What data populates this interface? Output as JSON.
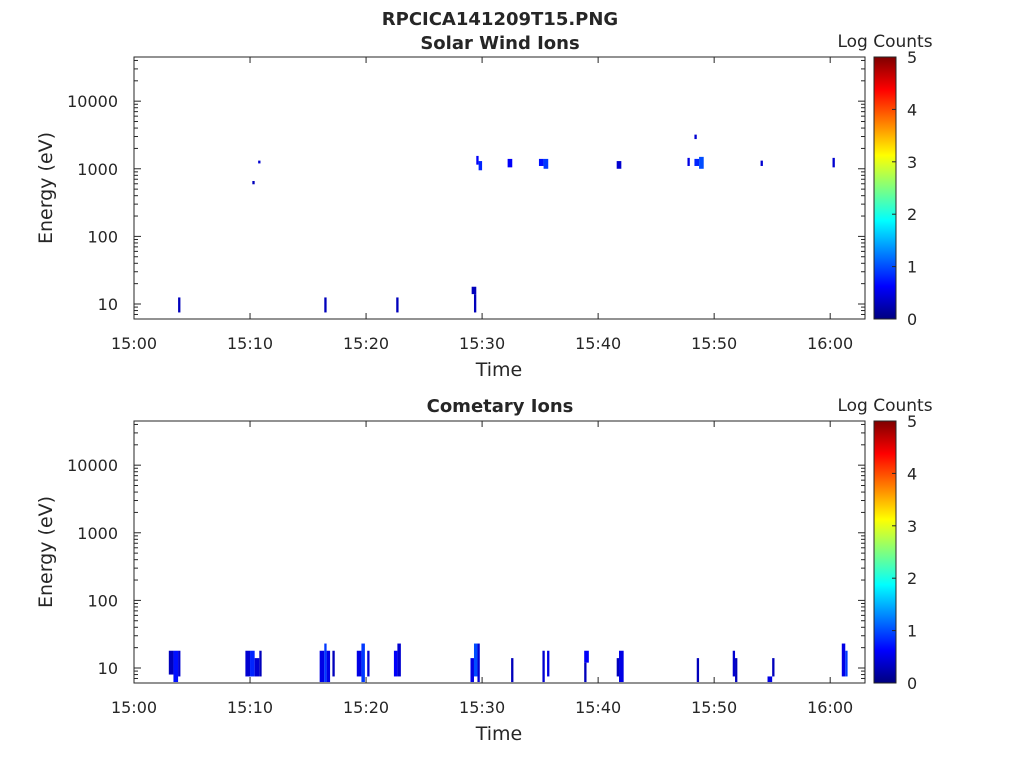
{
  "title": "RPCICA141209T15.PNG",
  "colormap": [
    "#00007f",
    "#0000ff",
    "#007fff",
    "#00ffff",
    "#7fff7f",
    "#ffff00",
    "#ff7f00",
    "#ff0000",
    "#7f0000"
  ],
  "axis_color": "#262626",
  "chart_data": [
    {
      "type": "heatmap",
      "title": "Solar Wind Ions",
      "xlabel": "Time",
      "ylabel": "Energy (eV)",
      "yscale": "log",
      "xlim": [
        "15:00",
        "16:03"
      ],
      "ylim": [
        6,
        45000
      ],
      "x_ticks": [
        "15:00",
        "15:10",
        "15:20",
        "15:30",
        "15:40",
        "15:50",
        "16:00"
      ],
      "y_ticks": [
        "10",
        "100",
        "1000",
        "10000"
      ],
      "colorbar": {
        "label": "Log Counts",
        "range": [
          0,
          5
        ],
        "ticks": [
          "0",
          "1",
          "2",
          "3",
          "4",
          "5"
        ]
      },
      "cells": [
        {
          "t0": "15:03.8",
          "t1": "15:04.0",
          "e_lo": 7.5,
          "e_hi": 12.5,
          "v": 0.3
        },
        {
          "t0": "15:10.2",
          "t1": "15:10.4",
          "e_lo": 590,
          "e_hi": 660,
          "v": 0.3
        },
        {
          "t0": "15:10.7",
          "t1": "15:10.9",
          "e_lo": 1200,
          "e_hi": 1320,
          "v": 0.4
        },
        {
          "t0": "15:16.4",
          "t1": "15:16.6",
          "e_lo": 7.5,
          "e_hi": 12.5,
          "v": 0.3
        },
        {
          "t0": "15:22.6",
          "t1": "15:22.8",
          "e_lo": 7.5,
          "e_hi": 12.5,
          "v": 0.3
        },
        {
          "t0": "15:29.1",
          "t1": "15:29.5",
          "e_lo": 14,
          "e_hi": 18,
          "v": 0.3
        },
        {
          "t0": "15:29.3",
          "t1": "15:29.5",
          "e_lo": 7.5,
          "e_hi": 14,
          "v": 0.3
        },
        {
          "t0": "15:29.5",
          "t1": "15:29.7",
          "e_lo": 1150,
          "e_hi": 1550,
          "v": 0.6
        },
        {
          "t0": "15:29.7",
          "t1": "15:30.0",
          "e_lo": 950,
          "e_hi": 1300,
          "v": 0.8
        },
        {
          "t0": "15:32.2",
          "t1": "15:32.6",
          "e_lo": 1050,
          "e_hi": 1400,
          "v": 0.6
        },
        {
          "t0": "15:34.9",
          "t1": "15:35.3",
          "e_lo": 1100,
          "e_hi": 1400,
          "v": 0.7
        },
        {
          "t0": "15:35.3",
          "t1": "15:35.7",
          "e_lo": 1000,
          "e_hi": 1400,
          "v": 0.9
        },
        {
          "t0": "15:41.6",
          "t1": "15:42.0",
          "e_lo": 1000,
          "e_hi": 1300,
          "v": 0.4
        },
        {
          "t0": "15:47.7",
          "t1": "15:47.9",
          "e_lo": 1100,
          "e_hi": 1450,
          "v": 0.5
        },
        {
          "t0": "15:48.3",
          "t1": "15:48.5",
          "e_lo": 2750,
          "e_hi": 3200,
          "v": 0.4
        },
        {
          "t0": "15:48.3",
          "t1": "15:48.7",
          "e_lo": 1100,
          "e_hi": 1400,
          "v": 0.8
        },
        {
          "t0": "15:48.7",
          "t1": "15:49.1",
          "e_lo": 1000,
          "e_hi": 1500,
          "v": 1.0
        },
        {
          "t0": "15:54.0",
          "t1": "15:54.2",
          "e_lo": 1100,
          "e_hi": 1320,
          "v": 0.4
        },
        {
          "t0": "16:00.2",
          "t1": "16:00.4",
          "e_lo": 1050,
          "e_hi": 1450,
          "v": 0.4
        }
      ]
    },
    {
      "type": "heatmap",
      "title": "Cometary Ions",
      "xlabel": "Time",
      "ylabel": "Energy (eV)",
      "yscale": "log",
      "xlim": [
        "15:00",
        "16:03"
      ],
      "ylim": [
        6,
        45000
      ],
      "x_ticks": [
        "15:00",
        "15:10",
        "15:20",
        "15:30",
        "15:40",
        "15:50",
        "16:00"
      ],
      "y_ticks": [
        "10",
        "100",
        "1000",
        "10000"
      ],
      "colorbar": {
        "label": "Log Counts",
        "range": [
          0,
          5
        ],
        "ticks": [
          "0",
          "1",
          "2",
          "3",
          "4",
          "5"
        ]
      },
      "cells": [
        {
          "t0": "15:03.0",
          "t1": "15:03.4",
          "e_lo": 8,
          "e_hi": 18,
          "v": 0.3
        },
        {
          "t0": "15:03.4",
          "t1": "15:03.8",
          "e_lo": 6.2,
          "e_hi": 18,
          "v": 0.7
        },
        {
          "t0": "15:03.8",
          "t1": "15:04.0",
          "e_lo": 7.5,
          "e_hi": 18,
          "v": 0.4
        },
        {
          "t0": "15:09.6",
          "t1": "15:10.0",
          "e_lo": 7.5,
          "e_hi": 18,
          "v": 0.4
        },
        {
          "t0": "15:10.0",
          "t1": "15:10.4",
          "e_lo": 7.5,
          "e_hi": 18,
          "v": 0.8
        },
        {
          "t0": "15:10.4",
          "t1": "15:10.8",
          "e_lo": 7.5,
          "e_hi": 14,
          "v": 0.4
        },
        {
          "t0": "15:10.8",
          "t1": "15:11.0",
          "e_lo": 7.5,
          "e_hi": 18,
          "v": 0.3
        },
        {
          "t0": "15:16.0",
          "t1": "15:16.4",
          "e_lo": 6.2,
          "e_hi": 18,
          "v": 0.5
        },
        {
          "t0": "15:16.4",
          "t1": "15:16.6",
          "e_lo": 6.2,
          "e_hi": 23,
          "v": 0.9
        },
        {
          "t0": "15:16.6",
          "t1": "15:16.9",
          "e_lo": 6.2,
          "e_hi": 18,
          "v": 0.5
        },
        {
          "t0": "15:17.1",
          "t1": "15:17.3",
          "e_lo": 7.5,
          "e_hi": 18,
          "v": 0.3
        },
        {
          "t0": "15:19.2",
          "t1": "15:19.6",
          "e_lo": 7.5,
          "e_hi": 18,
          "v": 0.5
        },
        {
          "t0": "15:19.6",
          "t1": "15:19.9",
          "e_lo": 6.2,
          "e_hi": 23,
          "v": 0.9
        },
        {
          "t0": "15:20.1",
          "t1": "15:20.3",
          "e_lo": 7.5,
          "e_hi": 18,
          "v": 0.4
        },
        {
          "t0": "15:22.4",
          "t1": "15:22.7",
          "e_lo": 7.5,
          "e_hi": 18,
          "v": 0.6
        },
        {
          "t0": "15:22.7",
          "t1": "15:23.0",
          "e_lo": 7.5,
          "e_hi": 23,
          "v": 0.4
        },
        {
          "t0": "15:29.0",
          "t1": "15:29.3",
          "e_lo": 6.2,
          "e_hi": 14,
          "v": 0.5
        },
        {
          "t0": "15:29.3",
          "t1": "15:29.6",
          "e_lo": 7.5,
          "e_hi": 23,
          "v": 1.0
        },
        {
          "t0": "15:29.6",
          "t1": "15:29.8",
          "e_lo": 6.2,
          "e_hi": 23,
          "v": 0.4
        },
        {
          "t0": "15:32.5",
          "t1": "15:32.7",
          "e_lo": 6.2,
          "e_hi": 14,
          "v": 0.3
        },
        {
          "t0": "15:35.2",
          "t1": "15:35.4",
          "e_lo": 6.2,
          "e_hi": 18,
          "v": 0.4
        },
        {
          "t0": "15:35.6",
          "t1": "15:35.8",
          "e_lo": 7.5,
          "e_hi": 18,
          "v": 0.5
        },
        {
          "t0": "15:38.8",
          "t1": "15:39.2",
          "e_lo": 12,
          "e_hi": 18,
          "v": 0.6
        },
        {
          "t0": "15:38.8",
          "t1": "15:39.0",
          "e_lo": 6.2,
          "e_hi": 12,
          "v": 0.3
        },
        {
          "t0": "15:41.6",
          "t1": "15:41.8",
          "e_lo": 7.5,
          "e_hi": 14,
          "v": 0.3
        },
        {
          "t0": "15:41.8",
          "t1": "15:42.2",
          "e_lo": 6.2,
          "e_hi": 18,
          "v": 0.5
        },
        {
          "t0": "15:48.5",
          "t1": "15:48.7",
          "e_lo": 6.2,
          "e_hi": 14,
          "v": 0.3
        },
        {
          "t0": "15:51.6",
          "t1": "15:51.8",
          "e_lo": 7.5,
          "e_hi": 18,
          "v": 0.4
        },
        {
          "t0": "15:51.8",
          "t1": "15:52.0",
          "e_lo": 6.2,
          "e_hi": 14,
          "v": 0.3
        },
        {
          "t0": "15:54.6",
          "t1": "15:55.0",
          "e_lo": 6.2,
          "e_hi": 7.5,
          "v": 0.5
        },
        {
          "t0": "15:55.0",
          "t1": "15:55.2",
          "e_lo": 7.5,
          "e_hi": 14,
          "v": 0.3
        },
        {
          "t0": "16:01.0",
          "t1": "16:01.3",
          "e_lo": 7.5,
          "e_hi": 23,
          "v": 0.5
        },
        {
          "t0": "16:01.3",
          "t1": "16:01.5",
          "e_lo": 7.5,
          "e_hi": 18,
          "v": 0.9
        }
      ]
    }
  ]
}
